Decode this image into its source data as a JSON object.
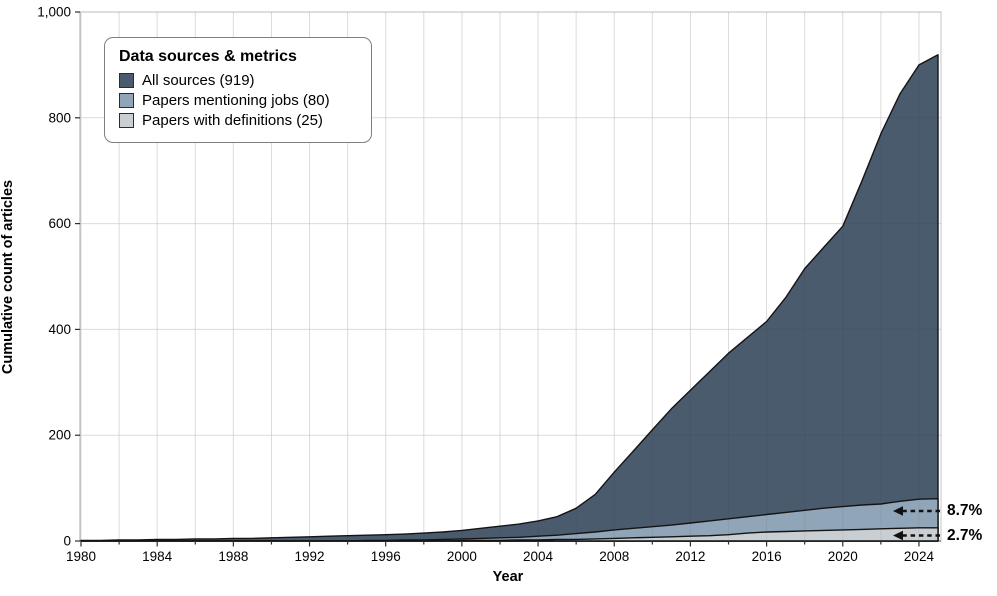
{
  "figure": {
    "background": "#ffffff"
  },
  "chart_data": {
    "type": "area",
    "title": "",
    "xlabel": "Year",
    "ylabel": "Cumulative count of articles",
    "xlim": [
      1980,
      2025
    ],
    "ylim": [
      0,
      1000
    ],
    "grid": "on",
    "legend_position": "top-left",
    "x_tick_labels": [
      "1980",
      "1984",
      "1988",
      "1992",
      "1996",
      "2000",
      "2004",
      "2008",
      "2012",
      "2016",
      "2020",
      "2024"
    ],
    "x_tick_years": [
      1980,
      1984,
      1988,
      1992,
      1996,
      2000,
      2004,
      2008,
      2012,
      2016,
      2020,
      2024
    ],
    "x_minor_step": 2,
    "y_ticks": [
      {
        "value": 0,
        "label": "0"
      },
      {
        "value": 200,
        "label": "200"
      },
      {
        "value": 400,
        "label": "400"
      },
      {
        "value": 600,
        "label": "600"
      },
      {
        "value": 800,
        "label": "800"
      },
      {
        "value": 1000,
        "label": "1,000"
      }
    ],
    "legend": {
      "title": "Data sources & metrics"
    },
    "years": [
      1980,
      1981,
      1982,
      1983,
      1984,
      1985,
      1986,
      1987,
      1988,
      1989,
      1990,
      1991,
      1992,
      1993,
      1994,
      1995,
      1996,
      1997,
      1998,
      1999,
      2000,
      2001,
      2002,
      2003,
      2004,
      2005,
      2006,
      2007,
      2008,
      2009,
      2010,
      2011,
      2012,
      2013,
      2014,
      2015,
      2016,
      2017,
      2018,
      2019,
      2020,
      2021,
      2022,
      2023,
      2024,
      2025
    ],
    "series": [
      {
        "name": "All sources (919)",
        "total": 919,
        "color": "#4b5b6e",
        "values": [
          1,
          1,
          2,
          2,
          3,
          3,
          4,
          4,
          5,
          5,
          6,
          7,
          8,
          9,
          10,
          11,
          12,
          13,
          15,
          17,
          20,
          24,
          28,
          32,
          38,
          46,
          62,
          88,
          130,
          170,
          210,
          250,
          285,
          320,
          355,
          385,
          415,
          460,
          515,
          555,
          595,
          680,
          770,
          845,
          900,
          919
        ]
      },
      {
        "name": "Papers mentioning jobs (80)",
        "total": 80,
        "color": "#90a5b8",
        "values": [
          0,
          0,
          0,
          0,
          0,
          0,
          0,
          0,
          0,
          0,
          0,
          0,
          0,
          0,
          0,
          1,
          1,
          2,
          2,
          3,
          4,
          5,
          6,
          7,
          9,
          11,
          14,
          17,
          21,
          24,
          27,
          30,
          34,
          38,
          42,
          46,
          50,
          54,
          58,
          62,
          65,
          68,
          70,
          75,
          79,
          80
        ]
      },
      {
        "name": "Papers with definitions (25)",
        "total": 25,
        "color": "#c9ced3",
        "values": [
          0,
          0,
          0,
          0,
          0,
          0,
          0,
          0,
          0,
          0,
          0,
          0,
          0,
          0,
          0,
          0,
          0,
          0,
          0,
          0,
          1,
          1,
          1,
          2,
          2,
          3,
          3,
          4,
          5,
          6,
          7,
          8,
          9,
          10,
          12,
          15,
          17,
          18,
          19,
          20,
          21,
          22,
          23,
          24,
          25,
          25
        ]
      }
    ],
    "annotations": [
      {
        "text": "8.7%",
        "refers_to": "Papers mentioning jobs (80)"
      },
      {
        "text": "2.7%",
        "refers_to": "Papers with definitions (25)"
      }
    ],
    "colors": {
      "outline": "#141414",
      "gridline": "#e7e7e7",
      "panel_border": "#c6c6c6",
      "axis_line_left": "#ababab",
      "axis_line_bottom": "#4a4a4a",
      "tick": "#2e2e2e",
      "arrow": "#111111"
    }
  }
}
